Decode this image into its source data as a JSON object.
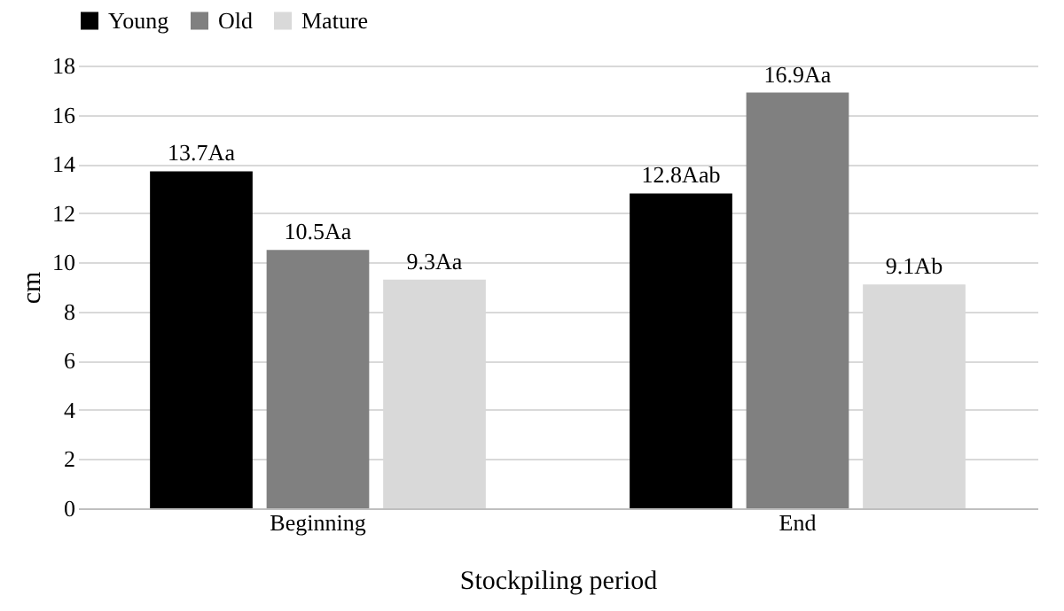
{
  "chart_data": {
    "type": "bar",
    "xlabel": "Stockpiling period",
    "ylabel": "cm",
    "categories": [
      "Beginning",
      "End"
    ],
    "series": [
      {
        "name": "Young",
        "color": "#000000",
        "values": [
          13.7,
          12.8
        ],
        "value_labels": [
          "13.7Aa",
          "12.8Aab"
        ]
      },
      {
        "name": "Old",
        "color": "#808080",
        "values": [
          10.5,
          16.9
        ],
        "value_labels": [
          "10.5Aa",
          "16.9Aa"
        ]
      },
      {
        "name": "Mature",
        "color": "#d9d9d9",
        "values": [
          9.3,
          9.1
        ],
        "value_labels": [
          "9.3Aa",
          "9.1Ab"
        ]
      }
    ],
    "ylim": [
      0,
      18
    ],
    "yticks": [
      0,
      2,
      4,
      6,
      8,
      10,
      12,
      14,
      16,
      18
    ],
    "grid": "y",
    "legend": "top"
  }
}
